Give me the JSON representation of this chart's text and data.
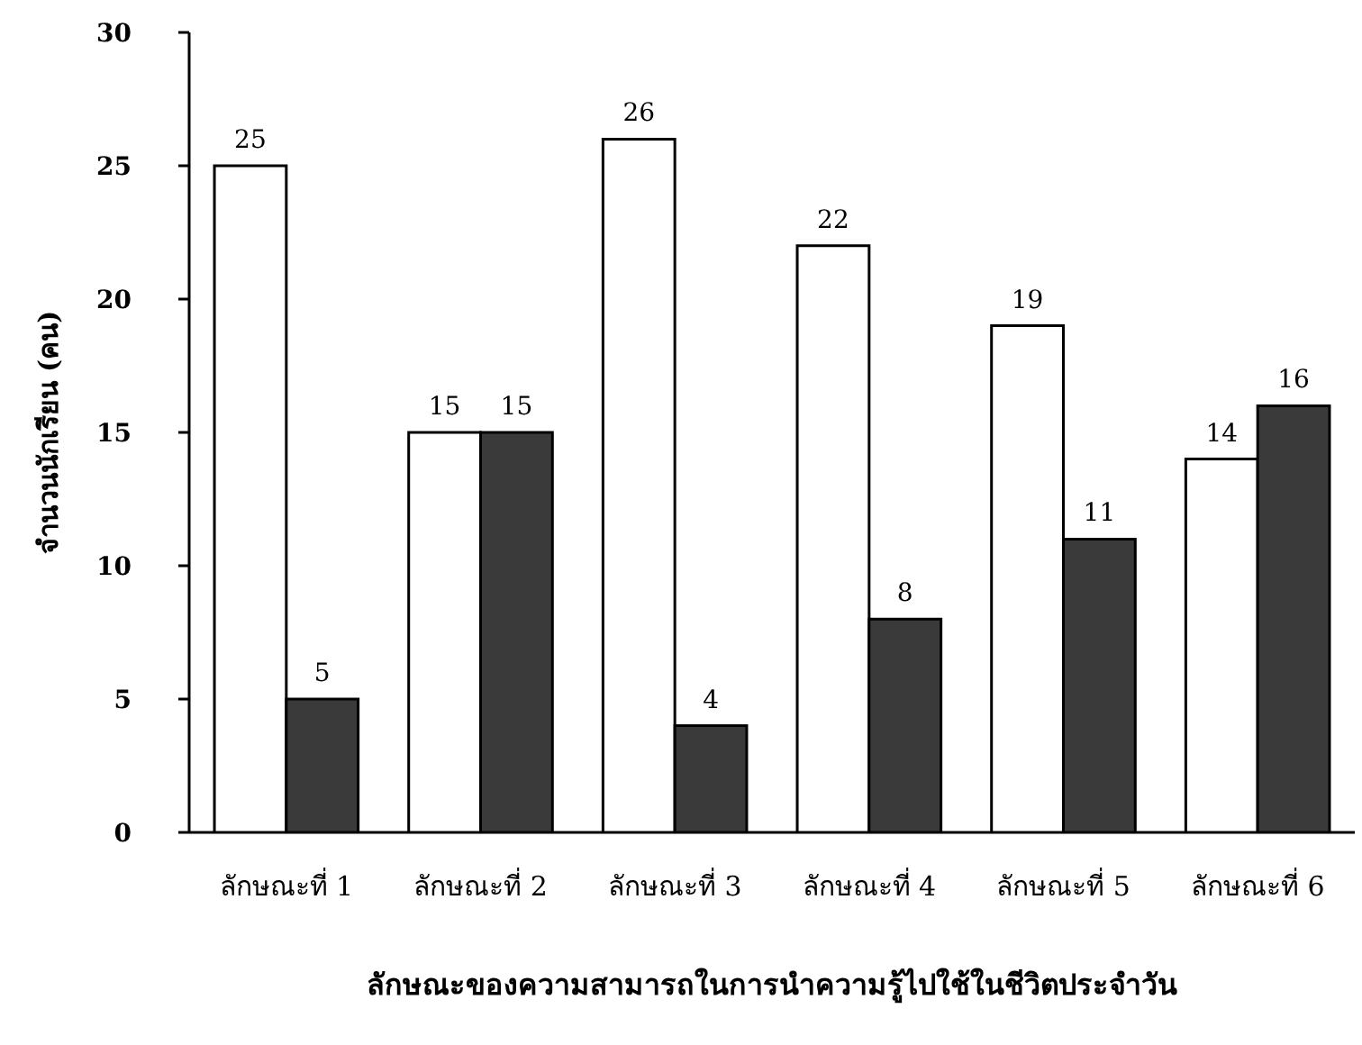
{
  "chart_data": {
    "type": "bar",
    "xlabel": "ลักษณะของความสามารถในการนำความรู้ไปใช้ในชีวิตประจำวัน",
    "ylabel": "จำนวนนักเรียน (คน)",
    "categories": [
      "ลักษณะที่ 1",
      "ลักษณะที่ 2",
      "ลักษณะที่ 3",
      "ลักษณะที่ 4",
      "ลักษณะที่ 5",
      "ลักษณะที่ 6"
    ],
    "series": [
      {
        "color": "#ffffff",
        "values": [
          25,
          15,
          26,
          22,
          19,
          14
        ]
      },
      {
        "color": "#3a3a3a",
        "values": [
          5,
          15,
          4,
          8,
          11,
          16
        ]
      }
    ],
    "ylim": [
      0,
      30
    ],
    "yticks": [
      0,
      5,
      10,
      15,
      20,
      25,
      30
    ],
    "data_labels": true,
    "grid": false
  }
}
